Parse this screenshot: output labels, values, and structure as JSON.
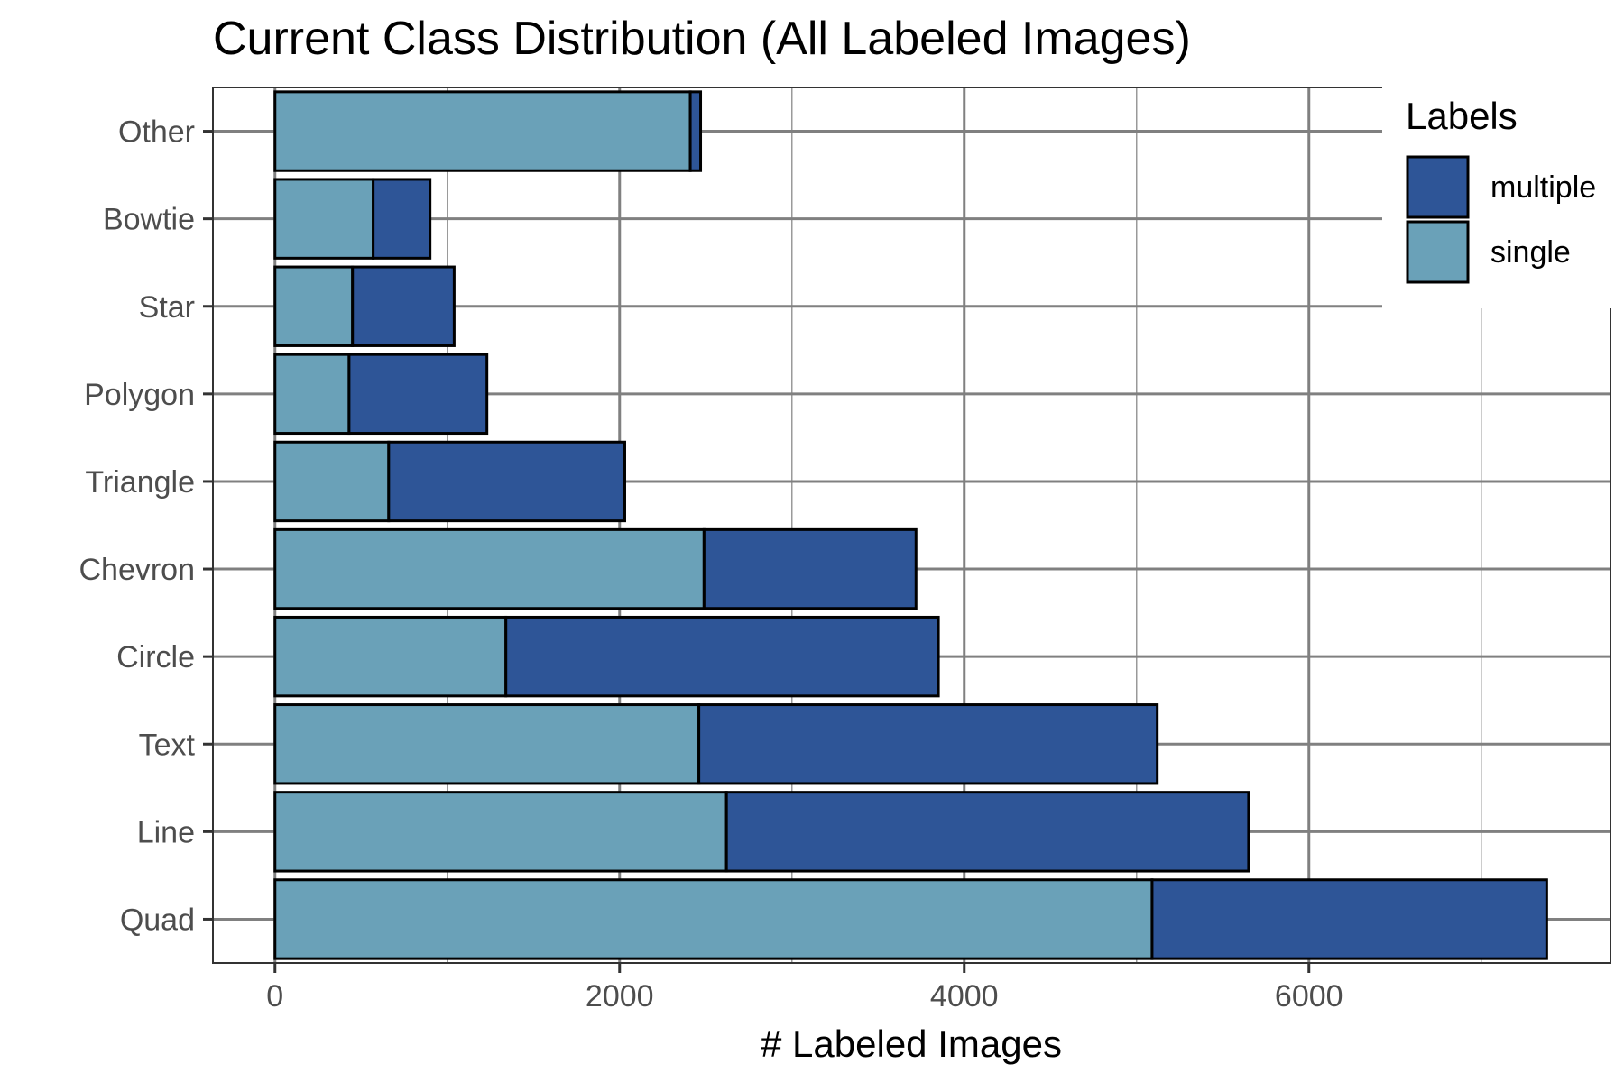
{
  "chart_data": {
    "type": "bar",
    "orientation": "horizontal",
    "stacked": true,
    "title": "Current Class Distribution (All Labeled Images)",
    "xlabel": "# Labeled Images",
    "ylabel": "",
    "xlim": [
      -360,
      7750
    ],
    "x_ticks": [
      0,
      2000,
      4000,
      6000
    ],
    "x_tick_labels": [
      "0",
      "2000",
      "4000",
      "6000"
    ],
    "categories": [
      "Other",
      "Bowtie",
      "Star",
      "Polygon",
      "Triangle",
      "Chevron",
      "Circle",
      "Text",
      "Line",
      "Quad"
    ],
    "series": [
      {
        "name": "single",
        "color": "#6aa1b8",
        "values": [
          2410,
          570,
          450,
          430,
          660,
          2490,
          1340,
          2460,
          2620,
          5090
        ]
      },
      {
        "name": "multiple",
        "color": "#2e5597",
        "values": [
          60,
          330,
          590,
          800,
          1370,
          1230,
          2510,
          2660,
          3030,
          2290
        ]
      }
    ],
    "legend": {
      "title": "Labels",
      "position": "top-right",
      "entries": [
        {
          "label": "multiple",
          "color": "#2e5597"
        },
        {
          "label": "single",
          "color": "#6aa1b8"
        }
      ]
    },
    "grid": true
  }
}
